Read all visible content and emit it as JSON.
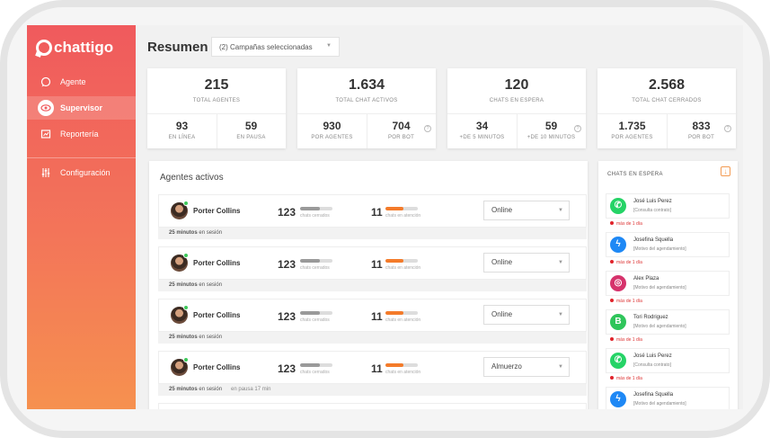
{
  "app": {
    "brand": "chattigo"
  },
  "sidebar": {
    "items": [
      {
        "label": "Agente",
        "icon": "chat-bubble-icon"
      },
      {
        "label": "Supervisor",
        "icon": "eye-icon",
        "active": true
      },
      {
        "label": "Reportería",
        "icon": "report-icon"
      },
      {
        "label": "Configuración",
        "icon": "sliders-icon"
      }
    ]
  },
  "header": {
    "title": "Resumen",
    "campaign_select": "(2) Campañas seleccionadas"
  },
  "stats": [
    {
      "value": "215",
      "label": "TOTAL AGENTES",
      "subs": [
        {
          "value": "93",
          "label": "EN LÍNEA"
        },
        {
          "value": "59",
          "label": "EN PAUSA"
        }
      ],
      "help": false
    },
    {
      "value": "1.634",
      "label": "TOTAL CHAT ACTIVOS",
      "subs": [
        {
          "value": "930",
          "label": "POR AGENTES"
        },
        {
          "value": "704",
          "label": "POR BOT"
        }
      ],
      "help": true
    },
    {
      "value": "120",
      "label": "CHATS EN ESPERA",
      "subs": [
        {
          "value": "34",
          "label": "+DE 5 MINUTOS"
        },
        {
          "value": "59",
          "label": "+DE 10 MINUTOS"
        }
      ],
      "help": true
    },
    {
      "value": "2.568",
      "label": "TOTAL CHAT CERRADOS",
      "subs": [
        {
          "value": "1.735",
          "label": "POR AGENTES"
        },
        {
          "value": "833",
          "label": "POR BOT"
        }
      ],
      "help": true
    }
  ],
  "help_glyph": "?",
  "agents_panel": {
    "title": "Agentes activos",
    "closed_label": "chats cerrados",
    "attention_label": "chats en atención",
    "session_suffix": "en sesión",
    "rows": [
      {
        "name": "Porter Collins",
        "closed": "123",
        "closed_fill": 0.6,
        "attention": "11",
        "attention_fill": 0.55,
        "status": "Online",
        "session": "25 minutos",
        "pause": ""
      },
      {
        "name": "Porter Collins",
        "closed": "123",
        "closed_fill": 0.6,
        "attention": "11",
        "attention_fill": 0.55,
        "status": "Online",
        "session": "25 minutos",
        "pause": ""
      },
      {
        "name": "Porter Collins",
        "closed": "123",
        "closed_fill": 0.6,
        "attention": "11",
        "attention_fill": 0.55,
        "status": "Online",
        "session": "25 minutos",
        "pause": ""
      },
      {
        "name": "Porter Collins",
        "closed": "123",
        "closed_fill": 0.6,
        "attention": "11",
        "attention_fill": 0.55,
        "status": "Almuerzo",
        "session": "25 minutos",
        "pause": "en pausa 17 min"
      }
    ]
  },
  "queue_panel": {
    "title": "CHATS EN ESPERA",
    "wait_label": "más de 1 día",
    "items": [
      {
        "name": "José Luis Perez",
        "subject": "[Consulta contrato]",
        "channel": "whatsapp-icon",
        "glyph": "✆",
        "color": "#25d366"
      },
      {
        "name": "Josefina Squella",
        "subject": "[Motivo del agendamiento]",
        "channel": "messenger-icon",
        "glyph": "ϟ",
        "color": "#1e88f5"
      },
      {
        "name": "Alex Plaza",
        "subject": "[Motivo del agendamiento]",
        "channel": "instagram-icon",
        "glyph": "◎",
        "color": "#d6336c"
      },
      {
        "name": "Tori Rodriguez",
        "subject": "[Motivo del agendamiento]",
        "channel": "business-chat-icon",
        "glyph": "B",
        "color": "#2fc55b"
      },
      {
        "name": "José Luis Perez",
        "subject": "[Consulta contrato]",
        "channel": "whatsapp-icon",
        "glyph": "✆",
        "color": "#25d366"
      },
      {
        "name": "Josefina Squella",
        "subject": "[Motivo del agendamiento]",
        "channel": "messenger-icon",
        "glyph": "ϟ",
        "color": "#1e88f5"
      }
    ]
  },
  "colors": {
    "accent": "#f05a5d",
    "accent2": "#f6914f",
    "closed_bar": "#9a9a9a",
    "attention_bar": "#f47b2a",
    "online": "#3ec95b"
  }
}
